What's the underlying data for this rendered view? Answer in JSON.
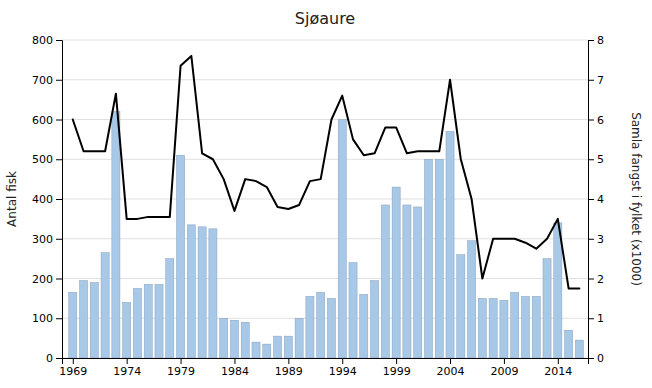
{
  "chart_data": {
    "type": "bar",
    "title": "Sjøaure",
    "ylabel": "Antal fisk",
    "y2label": "Samla fangst i fylket (x1000)",
    "x": [
      1969,
      1970,
      1971,
      1972,
      1973,
      1974,
      1975,
      1976,
      1977,
      1978,
      1979,
      1980,
      1981,
      1982,
      1983,
      1984,
      1985,
      1986,
      1987,
      1988,
      1989,
      1990,
      1991,
      1992,
      1993,
      1994,
      1995,
      1996,
      1997,
      1998,
      1999,
      2000,
      2001,
      2002,
      2003,
      2004,
      2005,
      2006,
      2007,
      2008,
      2009,
      2010,
      2011,
      2012,
      2013,
      2014,
      2015,
      2016
    ],
    "series": [
      {
        "type": "bar",
        "color": "#a8c8e8",
        "values": [
          165,
          195,
          190,
          265,
          620,
          140,
          175,
          185,
          185,
          250,
          510,
          335,
          330,
          325,
          100,
          95,
          90,
          40,
          35,
          55,
          55,
          100,
          155,
          165,
          150,
          600,
          240,
          160,
          195,
          385,
          430,
          385,
          380,
          500,
          500,
          570,
          260,
          295,
          150,
          150,
          145,
          165,
          155,
          155,
          250,
          340,
          70,
          45
        ]
      },
      {
        "type": "line",
        "color": "#000000",
        "axis": "y2",
        "values": [
          6.0,
          5.2,
          5.2,
          5.2,
          6.65,
          3.5,
          3.5,
          3.55,
          3.55,
          3.55,
          7.35,
          7.6,
          5.15,
          5.0,
          4.5,
          3.7,
          4.5,
          4.45,
          4.3,
          3.8,
          3.75,
          3.85,
          4.45,
          4.5,
          6.0,
          6.6,
          5.5,
          5.1,
          5.15,
          5.8,
          5.8,
          5.15,
          5.2,
          5.2,
          5.2,
          7.0,
          5.0,
          4.0,
          2.0,
          3.0,
          3.0,
          3.0,
          2.9,
          2.75,
          3.0,
          3.5,
          1.75,
          1.75
        ]
      }
    ],
    "xlim": [
      1968.0,
      2016.8
    ],
    "xticks": [
      1969,
      1974,
      1979,
      1984,
      1989,
      1994,
      1999,
      2004,
      2009,
      2014
    ],
    "ylim": [
      0,
      800
    ],
    "yticks": [
      0,
      100,
      200,
      300,
      400,
      500,
      600,
      700,
      800
    ],
    "y2lim": [
      0,
      8
    ],
    "y2ticks": [
      0,
      1,
      2,
      3,
      4,
      5,
      6,
      7,
      8
    ],
    "grid": true
  }
}
